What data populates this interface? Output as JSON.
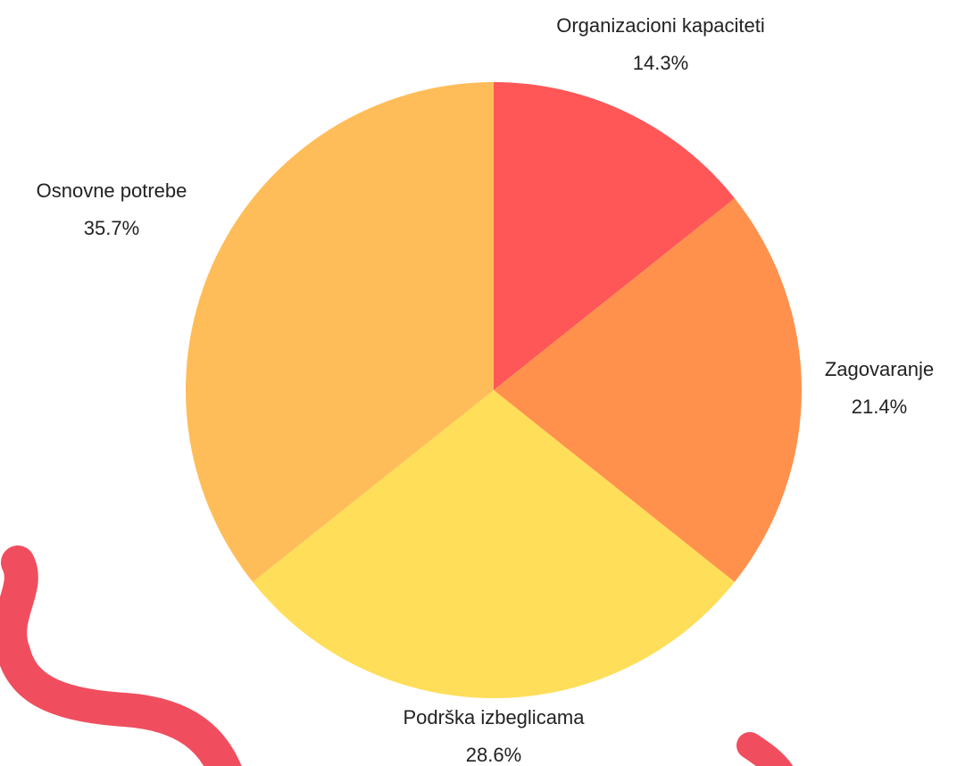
{
  "chart_data": {
    "type": "pie",
    "categories": [
      "Organizacioni kapaciteti",
      "Zagovaranje",
      "Podrška izbeglicama",
      "Osnovne potrebe"
    ],
    "values": [
      14.3,
      21.4,
      28.6,
      35.7
    ],
    "value_labels": [
      "14.3%",
      "21.4%",
      "28.6%",
      "35.7%"
    ],
    "colors": [
      "#ff5757",
      "#ff914d",
      "#ffde59",
      "#ffbd59"
    ]
  }
}
